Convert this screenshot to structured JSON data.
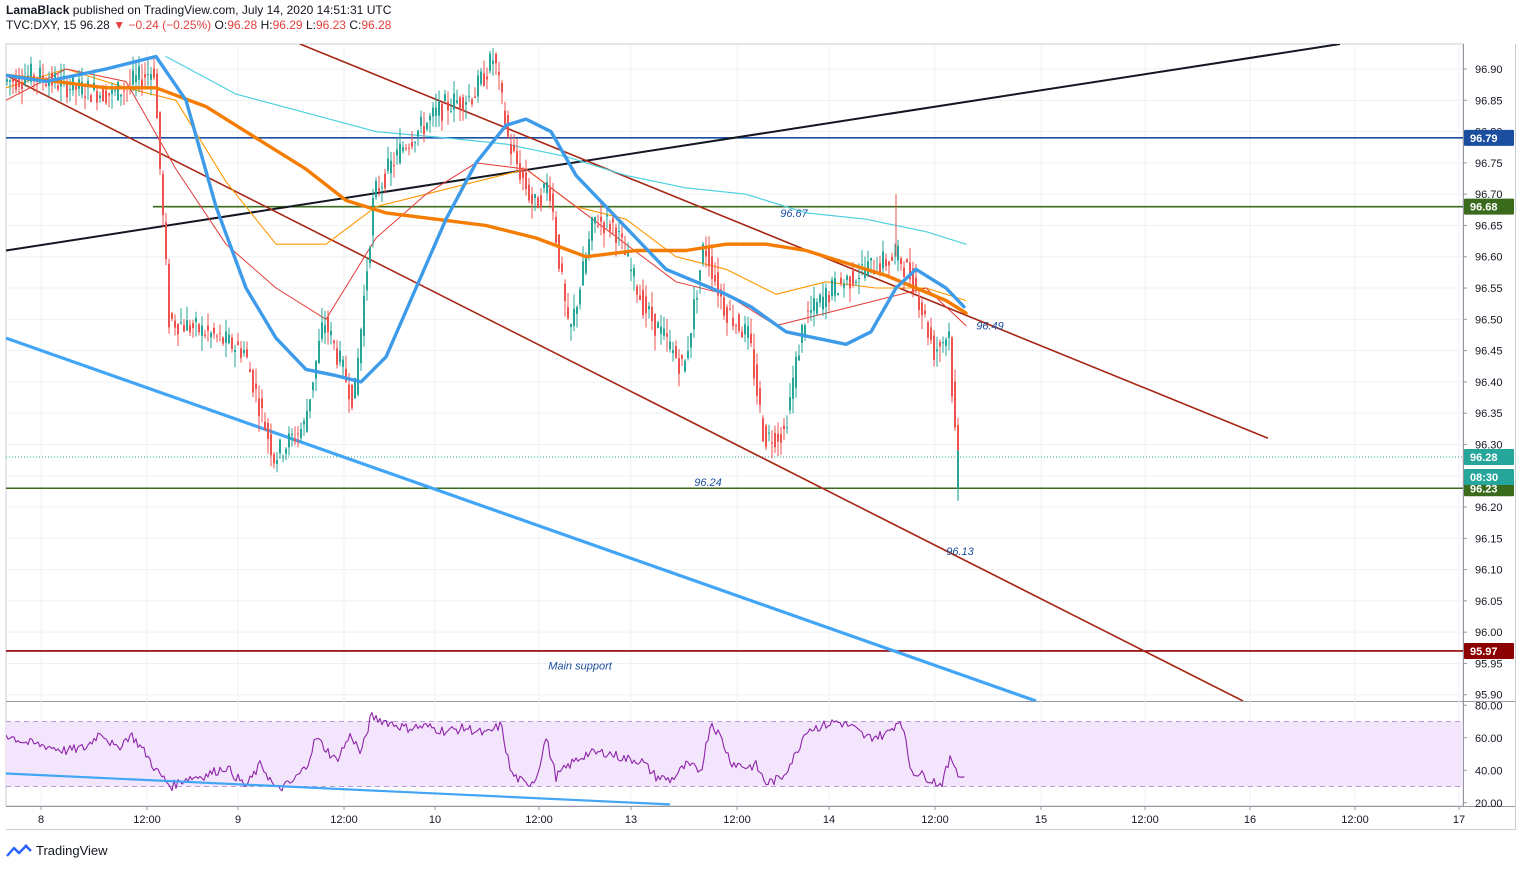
{
  "header": {
    "author": "LamaBlack",
    "published": " published on TradingView.com, July 14, 2020 14:51:31 UTC",
    "symbol": "TVC:DXY, 15",
    "price": "96.28",
    "change": "−0.24 (−0.25%)",
    "o_label": "O:",
    "o": "96.28",
    "h_label": "H:",
    "h": "96.29",
    "l_label": "L:",
    "l": "96.23",
    "c_label": "C:",
    "c": "96.28"
  },
  "footer": {
    "brand": "TradingView"
  },
  "colors": {
    "up": "#26a69a",
    "down": "#ef5350",
    "ema_blue": "#3d9be9",
    "ema_orange": "#f57c00",
    "trend_black": "#131722",
    "channel": "#a52714",
    "support_blue": "#42a5f5",
    "level_blue": "#1c4ea0",
    "level_green": "#3a6b1c",
    "level_red": "#8b0000",
    "rsi": "#8e24aa",
    "rsi_band": "#f3e5fb"
  },
  "chart_data": [
    {
      "type": "candlestick",
      "symbol": "TVC:DXY",
      "interval": "15",
      "ylim": [
        95.89,
        96.94
      ],
      "y_ticks": [
        "96.90",
        "96.85",
        "96.80",
        "96.75",
        "96.70",
        "96.65",
        "96.60",
        "96.55",
        "96.50",
        "96.45",
        "96.40",
        "96.35",
        "96.30",
        "96.25",
        "96.20",
        "96.15",
        "96.10",
        "96.05",
        "96.00",
        "95.95",
        "95.90"
      ],
      "x_ticks": [
        "8",
        "12:00",
        "9",
        "12:00",
        "10",
        "12:00",
        "13",
        "12:00",
        "14",
        "12:00",
        "15",
        "12:00",
        "16",
        "12:00",
        "17"
      ],
      "price_path": [
        [
          0,
          96.88
        ],
        [
          30,
          96.89
        ],
        [
          70,
          96.87
        ],
        [
          110,
          96.86
        ],
        [
          150,
          96.9
        ],
        [
          165,
          96.5
        ],
        [
          200,
          96.48
        ],
        [
          240,
          96.45
        ],
        [
          270,
          96.28
        ],
        [
          300,
          96.33
        ],
        [
          320,
          96.5
        ],
        [
          350,
          96.37
        ],
        [
          370,
          96.7
        ],
        [
          400,
          96.78
        ],
        [
          440,
          96.84
        ],
        [
          470,
          96.86
        ],
        [
          490,
          96.92
        ],
        [
          505,
          96.78
        ],
        [
          530,
          96.68
        ],
        [
          545,
          96.72
        ],
        [
          565,
          96.47
        ],
        [
          590,
          96.66
        ],
        [
          610,
          96.65
        ],
        [
          640,
          96.52
        ],
        [
          680,
          96.42
        ],
        [
          700,
          96.62
        ],
        [
          720,
          96.52
        ],
        [
          745,
          96.47
        ],
        [
          760,
          96.31
        ],
        [
          780,
          96.32
        ],
        [
          800,
          96.5
        ],
        [
          830,
          96.55
        ],
        [
          860,
          96.58
        ],
        [
          895,
          96.6
        ],
        [
          910,
          96.56
        ],
        [
          930,
          96.45
        ],
        [
          945,
          96.48
        ],
        [
          950,
          96.33
        ],
        [
          958,
          96.24
        ],
        [
          960,
          96.28
        ]
      ],
      "last_candle": {
        "open": 96.28,
        "high": 96.29,
        "low": 96.23,
        "close": 96.28
      },
      "low_extension": 96.21,
      "spike_high": 96.7,
      "ema_blue": [
        [
          0,
          96.89
        ],
        [
          40,
          96.88
        ],
        [
          100,
          96.9
        ],
        [
          150,
          96.92
        ],
        [
          180,
          96.85
        ],
        [
          210,
          96.68
        ],
        [
          240,
          96.55
        ],
        [
          270,
          96.47
        ],
        [
          300,
          96.42
        ],
        [
          330,
          96.41
        ],
        [
          355,
          96.4
        ],
        [
          380,
          96.44
        ],
        [
          410,
          96.55
        ],
        [
          440,
          96.66
        ],
        [
          470,
          96.75
        ],
        [
          500,
          96.81
        ],
        [
          520,
          96.82
        ],
        [
          545,
          96.8
        ],
        [
          570,
          96.73
        ],
        [
          600,
          96.68
        ],
        [
          630,
          96.63
        ],
        [
          660,
          96.58
        ],
        [
          690,
          96.56
        ],
        [
          720,
          96.54
        ],
        [
          745,
          96.52
        ],
        [
          780,
          96.48
        ],
        [
          810,
          96.47
        ],
        [
          840,
          96.46
        ],
        [
          865,
          96.48
        ],
        [
          890,
          96.55
        ],
        [
          910,
          96.58
        ],
        [
          940,
          96.55
        ],
        [
          958,
          96.52
        ]
      ],
      "ema_orange": [
        [
          0,
          96.89
        ],
        [
          50,
          96.88
        ],
        [
          100,
          96.87
        ],
        [
          150,
          96.87
        ],
        [
          200,
          96.84
        ],
        [
          250,
          96.79
        ],
        [
          300,
          96.74
        ],
        [
          340,
          96.69
        ],
        [
          380,
          96.67
        ],
        [
          430,
          96.66
        ],
        [
          480,
          96.65
        ],
        [
          530,
          96.63
        ],
        [
          580,
          96.6
        ],
        [
          630,
          96.61
        ],
        [
          680,
          96.61
        ],
        [
          720,
          96.62
        ],
        [
          760,
          96.62
        ],
        [
          800,
          96.61
        ],
        [
          840,
          96.59
        ],
        [
          880,
          96.57
        ],
        [
          910,
          96.55
        ],
        [
          940,
          96.53
        ],
        [
          960,
          96.51
        ]
      ],
      "ema_cyan": [
        [
          160,
          96.92
        ],
        [
          230,
          96.86
        ],
        [
          300,
          96.83
        ],
        [
          370,
          96.8
        ],
        [
          440,
          96.79
        ],
        [
          500,
          96.78
        ],
        [
          560,
          96.76
        ],
        [
          620,
          96.73
        ],
        [
          680,
          96.71
        ],
        [
          740,
          96.7
        ],
        [
          800,
          96.67
        ],
        [
          860,
          96.66
        ],
        [
          920,
          96.64
        ],
        [
          960,
          96.62
        ]
      ],
      "ema_thin_orange": [
        [
          0,
          96.87
        ],
        [
          60,
          96.9
        ],
        [
          120,
          96.87
        ],
        [
          170,
          96.85
        ],
        [
          220,
          96.72
        ],
        [
          270,
          96.62
        ],
        [
          320,
          96.62
        ],
        [
          370,
          96.68
        ],
        [
          420,
          96.7
        ],
        [
          470,
          96.72
        ],
        [
          520,
          96.74
        ],
        [
          570,
          96.68
        ],
        [
          620,
          96.66
        ],
        [
          670,
          96.6
        ],
        [
          720,
          96.58
        ],
        [
          770,
          96.54
        ],
        [
          820,
          96.56
        ],
        [
          870,
          96.55
        ],
        [
          920,
          96.55
        ],
        [
          960,
          96.53
        ]
      ],
      "ema_thin_red": [
        [
          0,
          96.85
        ],
        [
          60,
          96.9
        ],
        [
          120,
          96.88
        ],
        [
          170,
          96.74
        ],
        [
          220,
          96.62
        ],
        [
          270,
          96.55
        ],
        [
          320,
          96.5
        ],
        [
          370,
          96.63
        ],
        [
          420,
          96.7
        ],
        [
          470,
          96.75
        ],
        [
          520,
          96.74
        ],
        [
          570,
          96.68
        ],
        [
          620,
          96.62
        ],
        [
          670,
          96.56
        ],
        [
          720,
          96.54
        ],
        [
          770,
          96.49
        ],
        [
          820,
          96.51
        ],
        [
          870,
          96.53
        ],
        [
          920,
          96.55
        ],
        [
          960,
          96.49
        ]
      ],
      "horizontal_levels": [
        {
          "value": 96.79,
          "label": "96.79",
          "color": "#1c4ea0"
        },
        {
          "value": 96.68,
          "label": "96.68",
          "color": "#3a6b1c"
        },
        {
          "value": 96.23,
          "label": "96.23",
          "color": "#3a6b1c"
        },
        {
          "value": 95.97,
          "label": "95.97",
          "color": "#8b0000"
        }
      ],
      "current_price": {
        "value": 96.28,
        "label": "96.28",
        "countdown": "08:30"
      },
      "trend_lines": [
        {
          "name": "ascending",
          "points": [
            [
              6,
              96.61
            ],
            [
              1340,
              96.94
            ]
          ],
          "color": "#131722"
        },
        {
          "name": "channel-upper",
          "points": [
            [
              300,
              96.94
            ],
            [
              1268,
              96.31
            ]
          ],
          "color": "#a52714"
        },
        {
          "name": "channel-lower",
          "points": [
            [
              6,
              96.89
            ],
            [
              1243,
              95.89
            ]
          ],
          "color": "#a52714"
        },
        {
          "name": "support",
          "points": [
            [
              6,
              96.47
            ],
            [
              1036,
              95.89
            ]
          ],
          "color": "#42a5f5"
        }
      ],
      "annotations": [
        "96.67",
        "96.49",
        "96.24",
        "96.13",
        "Main support"
      ]
    },
    {
      "type": "line",
      "name": "RSI",
      "ylim": [
        18,
        82
      ],
      "y_ticks": [
        "80.00",
        "60.00",
        "40.00",
        "20.00"
      ],
      "band": [
        30,
        70
      ],
      "values": [
        [
          0,
          62
        ],
        [
          20,
          57
        ],
        [
          40,
          55
        ],
        [
          60,
          52
        ],
        [
          80,
          54
        ],
        [
          95,
          64
        ],
        [
          110,
          53
        ],
        [
          125,
          62
        ],
        [
          140,
          50
        ],
        [
          150,
          40
        ],
        [
          165,
          30
        ],
        [
          180,
          35
        ],
        [
          200,
          37
        ],
        [
          220,
          42
        ],
        [
          240,
          30
        ],
        [
          255,
          44
        ],
        [
          270,
          28
        ],
        [
          285,
          32
        ],
        [
          300,
          42
        ],
        [
          310,
          60
        ],
        [
          330,
          46
        ],
        [
          345,
          62
        ],
        [
          355,
          50
        ],
        [
          365,
          73
        ],
        [
          380,
          70
        ],
        [
          400,
          66
        ],
        [
          420,
          67
        ],
        [
          440,
          64
        ],
        [
          460,
          66
        ],
        [
          480,
          62
        ],
        [
          495,
          68
        ],
        [
          505,
          38
        ],
        [
          520,
          31
        ],
        [
          530,
          35
        ],
        [
          540,
          60
        ],
        [
          550,
          36
        ],
        [
          565,
          44
        ],
        [
          580,
          50
        ],
        [
          600,
          51
        ],
        [
          620,
          47
        ],
        [
          635,
          46
        ],
        [
          650,
          36
        ],
        [
          665,
          34
        ],
        [
          680,
          43
        ],
        [
          695,
          40
        ],
        [
          705,
          70
        ],
        [
          715,
          60
        ],
        [
          725,
          45
        ],
        [
          740,
          42
        ],
        [
          750,
          43
        ],
        [
          760,
          32
        ],
        [
          775,
          35
        ],
        [
          790,
          50
        ],
        [
          800,
          65
        ],
        [
          815,
          67
        ],
        [
          830,
          70
        ],
        [
          845,
          67
        ],
        [
          860,
          60
        ],
        [
          880,
          62
        ],
        [
          895,
          72
        ],
        [
          905,
          40
        ],
        [
          920,
          36
        ],
        [
          935,
          31
        ],
        [
          945,
          48
        ],
        [
          955,
          35
        ],
        [
          960,
          37
        ]
      ],
      "trend_line": {
        "points": [
          [
            6,
            38
          ],
          [
            670,
            19
          ]
        ],
        "color": "#42a5f5"
      }
    }
  ]
}
